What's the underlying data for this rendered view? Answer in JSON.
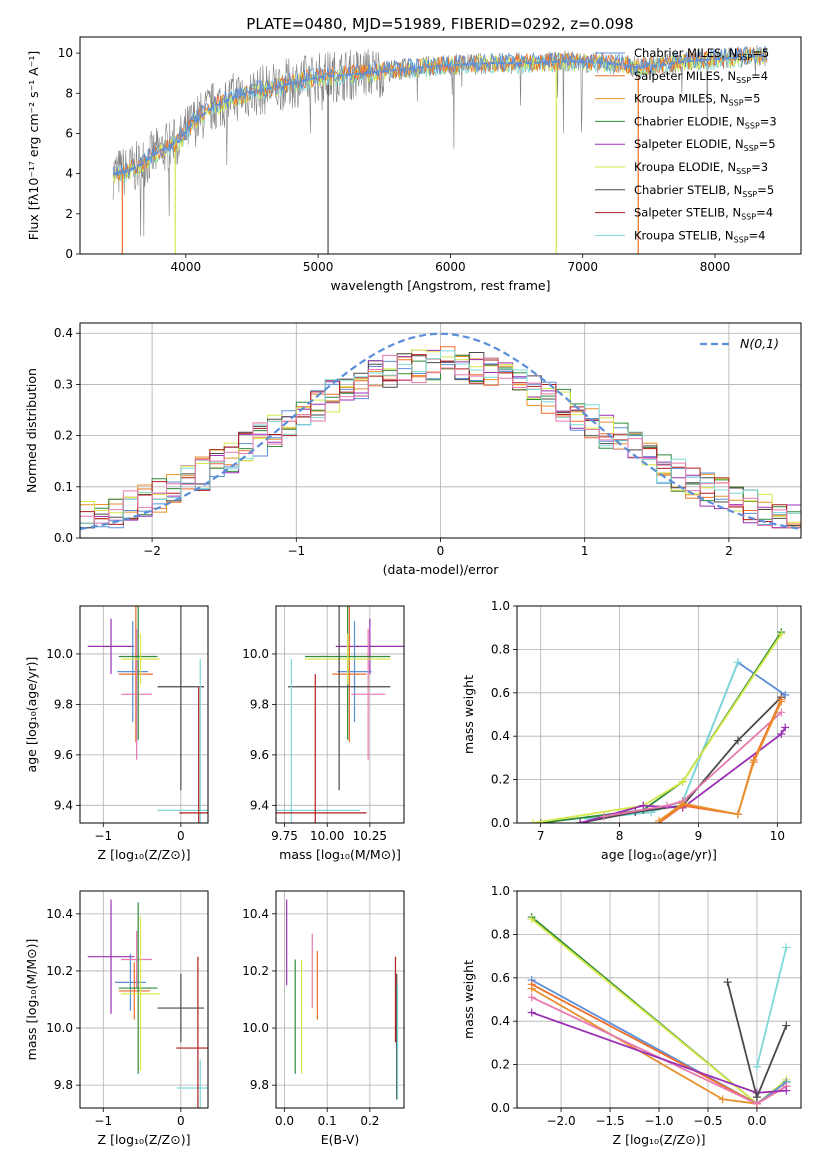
{
  "figure": {
    "title": "PLATE=0480, MJD=51989, FIBERID=0292, z=0.098"
  },
  "palette": {
    "chabrier_miles": "#5b8fd9",
    "salpeter_miles": "#ee6e2a",
    "kroupa_miles": "#e8902c",
    "chabrier_elodie": "#2e8b3a",
    "salpeter_elodie": "#9b30b5",
    "kroupa_elodie": "#d6e84a",
    "chabrier_stelib": "#4a4a4a",
    "salpeter_stelib": "#b01e1e",
    "kroupa_stelib": "#7fd8d8",
    "pink": "#e879b0",
    "data_gray": "#808080",
    "gauss": "#5b8fd9"
  },
  "chart_data": [
    {
      "id": "spectrum",
      "type": "line",
      "xlabel": "wavelength [Angstrom, rest frame]",
      "ylabel": "Flux [fλ10⁻¹⁷ erg cm⁻² s⁻¹ A⁻¹]",
      "xlim": [
        3200,
        8650
      ],
      "ylim": [
        0,
        10.8
      ],
      "xticks": [
        4000,
        5000,
        6000,
        7000,
        8000
      ],
      "yticks": [
        0,
        2,
        4,
        6,
        8,
        10
      ],
      "continuum": {
        "x": [
          3450,
          3550,
          3650,
          3750,
          3850,
          3950,
          4050,
          4200,
          4400,
          4600,
          4800,
          5000,
          5200,
          5500,
          5800,
          6000,
          6300,
          6600,
          6900,
          7200,
          7400,
          7600,
          7800,
          8000,
          8200,
          8400
        ],
        "y": [
          4.0,
          4.1,
          4.4,
          4.9,
          5.3,
          5.6,
          6.5,
          7.3,
          7.9,
          8.2,
          8.5,
          8.8,
          8.9,
          9.1,
          9.3,
          9.4,
          9.5,
          9.5,
          9.6,
          9.5,
          9.3,
          9.4,
          9.6,
          9.7,
          9.8,
          9.9
        ]
      },
      "legend": [
        "Chabrier MILES, N_SSP=5",
        "Salpeter MILES, N_SSP=4",
        "Kroupa MILES, N_SSP=5",
        "Chabrier ELODIE, N_SSP=3",
        "Salpeter ELODIE, N_SSP=5",
        "Kroupa ELODIE, N_SSP=3",
        "Chabrier STELIB, N_SSP=5",
        "Salpeter STELIB, N_SSP=4",
        "Kroupa STELIB, N_SSP=4"
      ]
    },
    {
      "id": "residuals",
      "type": "bar",
      "xlabel": "(data-model)/error",
      "ylabel": "Normed distribution",
      "xlim": [
        -2.5,
        2.5
      ],
      "ylim": [
        0,
        0.42
      ],
      "xticks": [
        -2,
        -1,
        0,
        1,
        2
      ],
      "yticks": [
        0.0,
        0.1,
        0.2,
        0.3,
        0.4
      ],
      "legend": [
        "N(0,1)"
      ],
      "bin_width": 0.1
    },
    {
      "id": "age_vs_Z",
      "type": "scatter",
      "xlabel": "Z [log₁₀(Z/Z⊙)]",
      "ylabel": "age  [log₁₀(age/yr)]",
      "xlim": [
        -1.3,
        0.35
      ],
      "ylim": [
        9.33,
        10.19
      ],
      "xticks": [
        -1,
        0
      ],
      "yticks": [
        9.4,
        9.6,
        9.8,
        10.0
      ],
      "points": [
        {
          "x": -0.9,
          "y": 10.03,
          "xerr": 0.3,
          "yerr": 0.11,
          "c": "salpeter_elodie"
        },
        {
          "x": -0.62,
          "y": 9.93,
          "xerr": 0.2,
          "yerr": 0.2,
          "c": "chabrier_miles"
        },
        {
          "x": -0.58,
          "y": 9.92,
          "xerr": 0.22,
          "yerr": 0.27,
          "c": "salpeter_miles"
        },
        {
          "x": -0.57,
          "y": 9.84,
          "xerr": 0.2,
          "yerr": 0.26,
          "c": "pink"
        },
        {
          "x": -0.55,
          "y": 9.99,
          "xerr": 0.25,
          "yerr": 0.33,
          "c": "chabrier_elodie"
        },
        {
          "x": -0.52,
          "y": 9.98,
          "xerr": 0.25,
          "yerr": 0.1,
          "c": "kroupa_elodie"
        },
        {
          "x": 0.0,
          "y": 9.87,
          "xerr": 0.3,
          "yerr": 0.41,
          "c": "chabrier_stelib"
        },
        {
          "x": 0.25,
          "y": 9.38,
          "xerr": 0.55,
          "yerr": 0.6,
          "c": "kroupa_stelib"
        },
        {
          "x": 0.23,
          "y": 9.37,
          "xerr": 0.25,
          "yerr": 0.5,
          "c": "salpeter_stelib"
        }
      ]
    },
    {
      "id": "age_vs_mass",
      "type": "scatter",
      "xlabel": "mass [log₁₀(M/M⊙)]",
      "ylabel": "",
      "xlim": [
        9.7,
        10.45
      ],
      "ylim": [
        9.33,
        10.19
      ],
      "xticks": [
        9.75,
        10.0,
        10.25
      ],
      "yticks": [
        9.4,
        9.6,
        9.8,
        10.0
      ],
      "points": [
        {
          "x": 10.25,
          "y": 10.03,
          "xerr": 0.2,
          "yerr": 0.11,
          "c": "salpeter_elodie"
        },
        {
          "x": 10.16,
          "y": 9.93,
          "xerr": 0.1,
          "yerr": 0.2,
          "c": "chabrier_miles"
        },
        {
          "x": 10.13,
          "y": 9.92,
          "xerr": 0.1,
          "yerr": 0.27,
          "c": "salpeter_miles"
        },
        {
          "x": 10.24,
          "y": 9.84,
          "xerr": 0.1,
          "yerr": 0.26,
          "c": "pink"
        },
        {
          "x": 10.12,
          "y": 9.99,
          "xerr": 0.25,
          "yerr": 0.33,
          "c": "chabrier_elodie"
        },
        {
          "x": 10.12,
          "y": 9.98,
          "xerr": 0.25,
          "yerr": 0.1,
          "c": "kroupa_elodie"
        },
        {
          "x": 10.07,
          "y": 9.87,
          "xerr": 0.3,
          "yerr": 0.41,
          "c": "chabrier_stelib"
        },
        {
          "x": 9.79,
          "y": 9.38,
          "xerr": 0.4,
          "yerr": 0.6,
          "c": "kroupa_stelib"
        },
        {
          "x": 9.93,
          "y": 9.37,
          "xerr": 0.3,
          "yerr": 0.55,
          "c": "salpeter_stelib"
        }
      ]
    },
    {
      "id": "weight_vs_age",
      "type": "line",
      "xlabel": "age  [log₁₀(age/yr)]",
      "ylabel": "mass weight",
      "xlim": [
        6.7,
        10.3
      ],
      "ylim": [
        0,
        1
      ],
      "xticks": [
        7,
        8,
        9,
        10
      ],
      "yticks": [
        0.0,
        0.2,
        0.4,
        0.6,
        0.8,
        1.0
      ],
      "series": [
        {
          "c": "chabrier_miles",
          "x": [
            7.6,
            8.4,
            8.8,
            9.5,
            10.1
          ],
          "y": [
            0.02,
            0.05,
            0.1,
            0.74,
            0.59
          ]
        },
        {
          "c": "kroupa_stelib",
          "x": [
            7.6,
            8.4,
            8.8,
            9.5
          ],
          "y": [
            0.02,
            0.05,
            0.1,
            0.74
          ]
        },
        {
          "c": "chabrier_elodie",
          "x": [
            7.0,
            8.3,
            8.8,
            10.05
          ],
          "y": [
            0.0,
            0.06,
            0.19,
            0.88
          ]
        },
        {
          "c": "kroupa_elodie",
          "x": [
            6.9,
            8.3,
            8.8,
            10.05
          ],
          "y": [
            0.0,
            0.08,
            0.19,
            0.87
          ]
        },
        {
          "c": "chabrier_stelib",
          "x": [
            7.5,
            8.2,
            8.8,
            9.5,
            10.05
          ],
          "y": [
            0.0,
            0.05,
            0.08,
            0.38,
            0.58
          ]
        },
        {
          "c": "salpeter_elodie",
          "x": [
            7.5,
            8.3,
            8.8,
            10.05,
            10.1
          ],
          "y": [
            0.0,
            0.08,
            0.07,
            0.41,
            0.44
          ]
        },
        {
          "c": "pink",
          "x": [
            7.8,
            8.6,
            8.8,
            10.05
          ],
          "y": [
            0.03,
            0.08,
            0.1,
            0.51
          ]
        },
        {
          "c": "salpeter_miles",
          "x": [
            8.5,
            8.8,
            9.5,
            9.7,
            10.05
          ],
          "y": [
            0.0,
            0.08,
            0.04,
            0.29,
            0.57
          ]
        },
        {
          "c": "kroupa_miles",
          "x": [
            8.5,
            8.8,
            9.5,
            9.7,
            10.05
          ],
          "y": [
            0.01,
            0.09,
            0.04,
            0.28,
            0.56
          ]
        }
      ]
    },
    {
      "id": "mass_vs_Z",
      "type": "scatter",
      "xlabel": "Z [log₁₀(Z/Z⊙)]",
      "ylabel": "mass [log₁₀(M/M⊙)]",
      "xlim": [
        -1.3,
        0.35
      ],
      "ylim": [
        9.72,
        10.48
      ],
      "xticks": [
        -1,
        0
      ],
      "yticks": [
        9.8,
        10.0,
        10.2,
        10.4
      ],
      "points": [
        {
          "x": -0.9,
          "y": 10.25,
          "xerr": 0.3,
          "yerr": 0.2,
          "c": "salpeter_elodie"
        },
        {
          "x": -0.65,
          "y": 10.16,
          "xerr": 0.2,
          "yerr": 0.1,
          "c": "chabrier_miles"
        },
        {
          "x": -0.6,
          "y": 10.13,
          "xerr": 0.2,
          "yerr": 0.1,
          "c": "salpeter_miles"
        },
        {
          "x": -0.57,
          "y": 10.24,
          "xerr": 0.2,
          "yerr": 0.1,
          "c": "pink"
        },
        {
          "x": -0.55,
          "y": 10.14,
          "xerr": 0.25,
          "yerr": 0.3,
          "c": "chabrier_elodie"
        },
        {
          "x": -0.52,
          "y": 10.12,
          "xerr": 0.25,
          "yerr": 0.27,
          "c": "kroupa_elodie"
        },
        {
          "x": 0.0,
          "y": 10.07,
          "xerr": 0.3,
          "yerr": 0.12,
          "c": "chabrier_stelib"
        },
        {
          "x": 0.25,
          "y": 9.79,
          "xerr": 0.3,
          "yerr": 0.1,
          "c": "kroupa_stelib"
        },
        {
          "x": 0.22,
          "y": 9.93,
          "xerr": 0.28,
          "yerr": 0.32,
          "c": "salpeter_stelib"
        }
      ]
    },
    {
      "id": "mass_vs_ebv",
      "type": "scatter",
      "xlabel": "E(B-V)",
      "ylabel": "",
      "xlim": [
        -0.02,
        0.28
      ],
      "ylim": [
        9.72,
        10.48
      ],
      "xticks": [
        0.0,
        0.1,
        0.2
      ],
      "yticks": [
        9.8,
        10.0,
        10.2,
        10.4
      ],
      "points": [
        {
          "x": 0.005,
          "y": 10.3,
          "yerr": 0.15,
          "c": "salpeter_elodie"
        },
        {
          "x": 0.025,
          "y": 10.04,
          "yerr": 0.2,
          "c": "chabrier_elodie"
        },
        {
          "x": 0.04,
          "y": 10.04,
          "yerr": 0.2,
          "c": "kroupa_elodie"
        },
        {
          "x": 0.065,
          "y": 10.2,
          "yerr": 0.13,
          "c": "pink"
        },
        {
          "x": 0.077,
          "y": 10.15,
          "yerr": 0.12,
          "c": "salpeter_miles"
        },
        {
          "x": 0.26,
          "y": 10.1,
          "yerr": 0.15,
          "c": "salpeter_stelib"
        },
        {
          "x": 0.263,
          "y": 9.97,
          "yerr": 0.22,
          "c": "chabrier_stelib"
        },
        {
          "x": 0.265,
          "y": 9.95,
          "yerr": 0.2,
          "c": "kroupa_stelib"
        }
      ]
    },
    {
      "id": "weight_vs_Z",
      "type": "line",
      "xlabel": "Z [log₁₀(Z/Z⊙)]",
      "ylabel": "mass weight",
      "xlim": [
        -2.45,
        0.45
      ],
      "ylim": [
        0,
        1
      ],
      "xticks": [
        -2.0,
        -1.5,
        -1.0,
        -0.5,
        0.0
      ],
      "yticks": [
        0.0,
        0.2,
        0.4,
        0.6,
        0.8,
        1.0
      ],
      "series": [
        {
          "c": "chabrier_elodie",
          "x": [
            -2.3,
            0.0,
            0.3
          ],
          "y": [
            0.88,
            0.02,
            0.12
          ]
        },
        {
          "c": "kroupa_elodie",
          "x": [
            -2.3,
            0.0,
            0.3
          ],
          "y": [
            0.87,
            0.02,
            0.13
          ]
        },
        {
          "c": "chabrier_miles",
          "x": [
            -2.3,
            0.0,
            0.3
          ],
          "y": [
            0.59,
            0.02,
            0.12
          ]
        },
        {
          "c": "salpeter_miles",
          "x": [
            -2.3,
            0.0,
            0.3
          ],
          "y": [
            0.57,
            0.02,
            0.1
          ]
        },
        {
          "c": "kroupa_miles",
          "x": [
            -2.3,
            -0.35,
            0.0
          ],
          "y": [
            0.55,
            0.04,
            0.02
          ]
        },
        {
          "c": "pink",
          "x": [
            -2.3,
            0.0,
            0.3
          ],
          "y": [
            0.51,
            0.02,
            0.1
          ]
        },
        {
          "c": "salpeter_elodie",
          "x": [
            -2.3,
            0.0,
            0.3
          ],
          "y": [
            0.44,
            0.07,
            0.08
          ]
        },
        {
          "c": "chabrier_stelib",
          "x": [
            -0.3,
            0.0,
            0.3
          ],
          "y": [
            0.58,
            0.05,
            0.38
          ]
        },
        {
          "c": "kroupa_stelib",
          "x": [
            0.0,
            0.3
          ],
          "y": [
            0.19,
            0.74
          ]
        }
      ]
    }
  ]
}
